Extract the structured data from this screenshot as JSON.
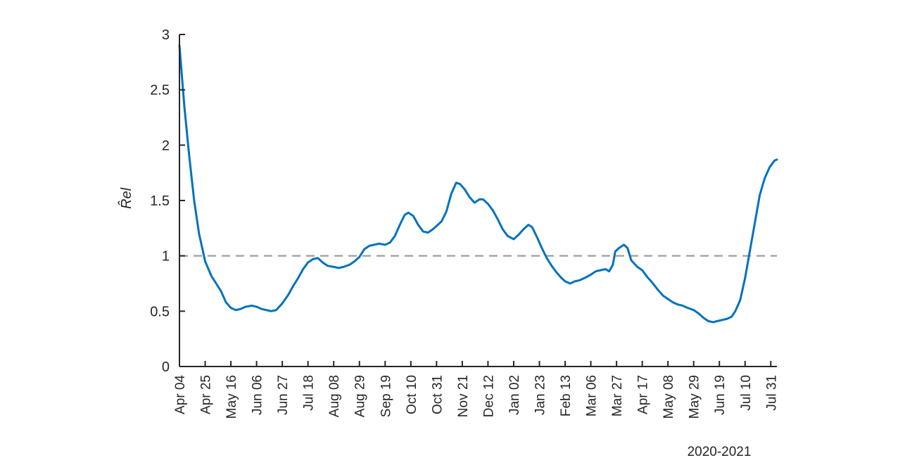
{
  "chart_data": {
    "type": "line",
    "title": "",
    "xlabel": "",
    "ylabel": "R̂el",
    "date_range_label": "2020-2021",
    "ylim": [
      0,
      3
    ],
    "y_ticks": [
      0,
      0.5,
      1,
      1.5,
      2,
      2.5,
      3
    ],
    "y_tick_labels": [
      "0",
      "0.5",
      "1",
      "1.5",
      "2",
      "2.5",
      "3"
    ],
    "x_tick_labels": [
      "Apr 04",
      "Apr 25",
      "May 16",
      "Jun 06",
      "Jun 27",
      "Jul 18",
      "Aug 08",
      "Aug 29",
      "Sep 19",
      "Oct 10",
      "Oct 31",
      "Nov 21",
      "Dec 12",
      "Jan 02",
      "Jan 23",
      "Feb 13",
      "Mar 06",
      "Mar 27",
      "Apr 17",
      "May 08",
      "May 29",
      "Jun 19",
      "Jul 10",
      "Jul 31"
    ],
    "x_tick_dates": [
      "2020-04-04",
      "2020-04-25",
      "2020-05-16",
      "2020-06-06",
      "2020-06-27",
      "2020-07-18",
      "2020-08-08",
      "2020-08-29",
      "2020-09-19",
      "2020-10-10",
      "2020-10-31",
      "2020-11-21",
      "2020-12-12",
      "2021-01-02",
      "2021-01-23",
      "2021-02-13",
      "2021-03-06",
      "2021-03-27",
      "2021-04-17",
      "2021-05-08",
      "2021-05-29",
      "2021-06-19",
      "2021-07-10",
      "2021-07-31"
    ],
    "xlim": [
      "2020-04-04",
      "2021-08-05"
    ],
    "reference_line": {
      "y": 1,
      "style": "dashed",
      "color": "#999999"
    },
    "series": [
      {
        "color": "#0072BD",
        "points": [
          [
            "2020-04-04",
            2.9
          ],
          [
            "2020-04-08",
            2.35
          ],
          [
            "2020-04-12",
            1.9
          ],
          [
            "2020-04-16",
            1.5
          ],
          [
            "2020-04-20",
            1.2
          ],
          [
            "2020-04-25",
            0.95
          ],
          [
            "2020-04-30",
            0.82
          ],
          [
            "2020-05-04",
            0.75
          ],
          [
            "2020-05-08",
            0.68
          ],
          [
            "2020-05-12",
            0.58
          ],
          [
            "2020-05-16",
            0.53
          ],
          [
            "2020-05-20",
            0.51
          ],
          [
            "2020-05-24",
            0.52
          ],
          [
            "2020-05-28",
            0.54
          ],
          [
            "2020-06-02",
            0.55
          ],
          [
            "2020-06-06",
            0.54
          ],
          [
            "2020-06-10",
            0.52
          ],
          [
            "2020-06-14",
            0.51
          ],
          [
            "2020-06-18",
            0.5
          ],
          [
            "2020-06-22",
            0.51
          ],
          [
            "2020-06-27",
            0.57
          ],
          [
            "2020-07-02",
            0.65
          ],
          [
            "2020-07-06",
            0.73
          ],
          [
            "2020-07-10",
            0.8
          ],
          [
            "2020-07-14",
            0.88
          ],
          [
            "2020-07-18",
            0.94
          ],
          [
            "2020-07-22",
            0.97
          ],
          [
            "2020-07-26",
            0.98
          ],
          [
            "2020-07-30",
            0.94
          ],
          [
            "2020-08-03",
            0.91
          ],
          [
            "2020-08-08",
            0.9
          ],
          [
            "2020-08-12",
            0.89
          ],
          [
            "2020-08-16",
            0.9
          ],
          [
            "2020-08-21",
            0.92
          ],
          [
            "2020-08-25",
            0.95
          ],
          [
            "2020-08-29",
            0.99
          ],
          [
            "2020-09-02",
            1.06
          ],
          [
            "2020-09-06",
            1.09
          ],
          [
            "2020-09-10",
            1.1
          ],
          [
            "2020-09-14",
            1.11
          ],
          [
            "2020-09-19",
            1.1
          ],
          [
            "2020-09-23",
            1.12
          ],
          [
            "2020-09-27",
            1.18
          ],
          [
            "2020-10-01",
            1.28
          ],
          [
            "2020-10-05",
            1.37
          ],
          [
            "2020-10-08",
            1.39
          ],
          [
            "2020-10-12",
            1.36
          ],
          [
            "2020-10-16",
            1.28
          ],
          [
            "2020-10-20",
            1.22
          ],
          [
            "2020-10-24",
            1.21
          ],
          [
            "2020-10-28",
            1.24
          ],
          [
            "2020-10-31",
            1.27
          ],
          [
            "2020-11-04",
            1.31
          ],
          [
            "2020-11-08",
            1.4
          ],
          [
            "2020-11-12",
            1.56
          ],
          [
            "2020-11-16",
            1.66
          ],
          [
            "2020-11-19",
            1.65
          ],
          [
            "2020-11-23",
            1.6
          ],
          [
            "2020-11-27",
            1.53
          ],
          [
            "2020-12-01",
            1.48
          ],
          [
            "2020-12-05",
            1.51
          ],
          [
            "2020-12-08",
            1.51
          ],
          [
            "2020-12-12",
            1.47
          ],
          [
            "2020-12-16",
            1.41
          ],
          [
            "2020-12-20",
            1.33
          ],
          [
            "2020-12-24",
            1.24
          ],
          [
            "2020-12-28",
            1.18
          ],
          [
            "2021-01-02",
            1.15
          ],
          [
            "2021-01-06",
            1.19
          ],
          [
            "2021-01-10",
            1.24
          ],
          [
            "2021-01-14",
            1.28
          ],
          [
            "2021-01-17",
            1.26
          ],
          [
            "2021-01-21",
            1.17
          ],
          [
            "2021-01-25",
            1.07
          ],
          [
            "2021-01-29",
            0.98
          ],
          [
            "2021-02-02",
            0.91
          ],
          [
            "2021-02-06",
            0.85
          ],
          [
            "2021-02-10",
            0.8
          ],
          [
            "2021-02-13",
            0.77
          ],
          [
            "2021-02-17",
            0.75
          ],
          [
            "2021-02-21",
            0.77
          ],
          [
            "2021-02-25",
            0.78
          ],
          [
            "2021-03-01",
            0.8
          ],
          [
            "2021-03-06",
            0.83
          ],
          [
            "2021-03-10",
            0.86
          ],
          [
            "2021-03-14",
            0.87
          ],
          [
            "2021-03-18",
            0.88
          ],
          [
            "2021-03-21",
            0.86
          ],
          [
            "2021-03-24",
            0.92
          ],
          [
            "2021-03-26",
            1.04
          ],
          [
            "2021-03-29",
            1.07
          ],
          [
            "2021-04-02",
            1.1
          ],
          [
            "2021-04-05",
            1.07
          ],
          [
            "2021-04-08",
            0.96
          ],
          [
            "2021-04-13",
            0.9
          ],
          [
            "2021-04-17",
            0.87
          ],
          [
            "2021-04-21",
            0.81
          ],
          [
            "2021-04-25",
            0.76
          ],
          [
            "2021-04-30",
            0.69
          ],
          [
            "2021-05-04",
            0.64
          ],
          [
            "2021-05-08",
            0.61
          ],
          [
            "2021-05-12",
            0.58
          ],
          [
            "2021-05-16",
            0.56
          ],
          [
            "2021-05-20",
            0.55
          ],
          [
            "2021-05-24",
            0.53
          ],
          [
            "2021-05-29",
            0.51
          ],
          [
            "2021-06-02",
            0.48
          ],
          [
            "2021-06-06",
            0.44
          ],
          [
            "2021-06-10",
            0.41
          ],
          [
            "2021-06-14",
            0.4
          ],
          [
            "2021-06-17",
            0.41
          ],
          [
            "2021-06-21",
            0.42
          ],
          [
            "2021-06-25",
            0.43
          ],
          [
            "2021-06-29",
            0.45
          ],
          [
            "2021-07-02",
            0.5
          ],
          [
            "2021-07-06",
            0.6
          ],
          [
            "2021-07-10",
            0.8
          ],
          [
            "2021-07-14",
            1.05
          ],
          [
            "2021-07-18",
            1.3
          ],
          [
            "2021-07-22",
            1.55
          ],
          [
            "2021-07-26",
            1.7
          ],
          [
            "2021-07-30",
            1.8
          ],
          [
            "2021-08-03",
            1.86
          ],
          [
            "2021-08-05",
            1.87
          ]
        ]
      }
    ]
  }
}
